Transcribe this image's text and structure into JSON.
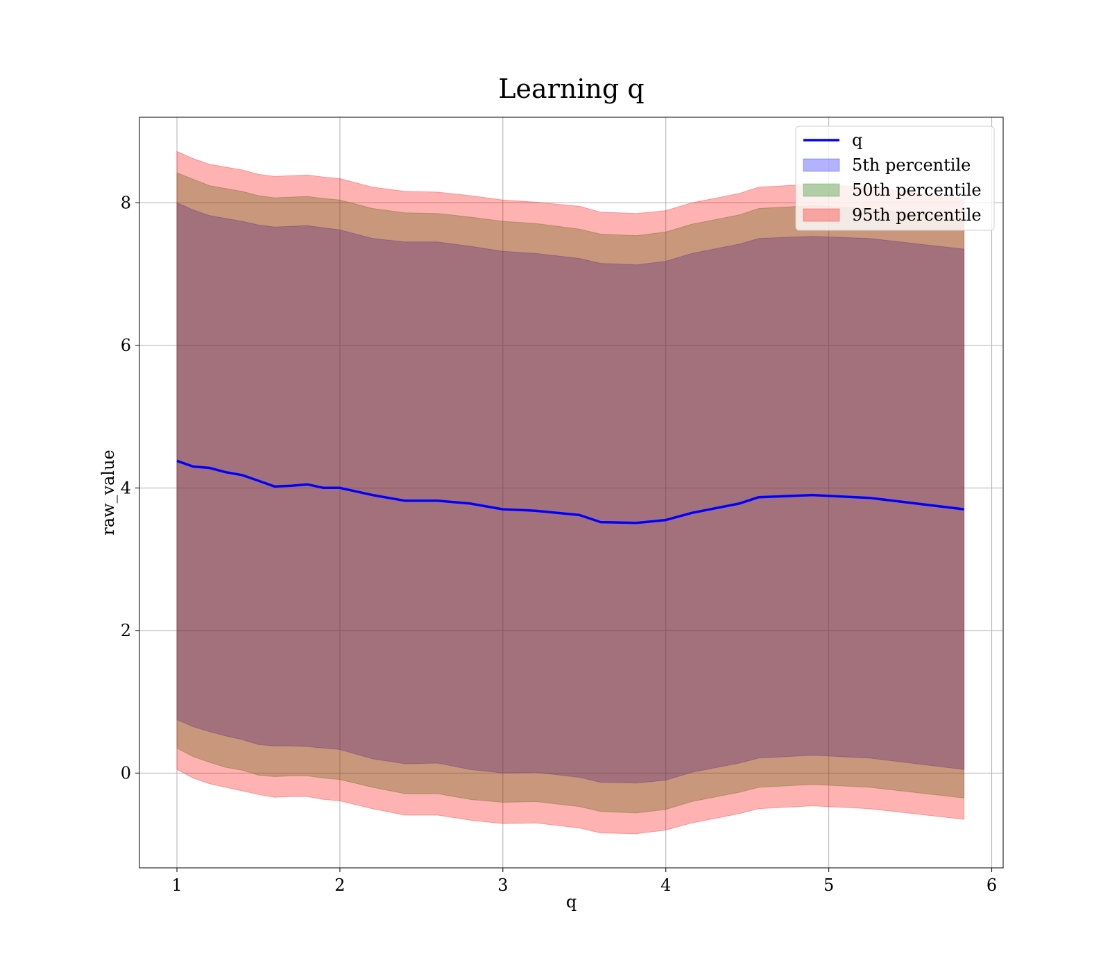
{
  "chart_data": {
    "type": "area",
    "title": "Learning q",
    "xlabel": "q",
    "ylabel": "raw_value",
    "xlim": [
      0.77,
      6.07
    ],
    "ylim": [
      -1.33,
      9.2
    ],
    "xticks": [
      1,
      2,
      3,
      4,
      5,
      6
    ],
    "yticks": [
      0,
      2,
      4,
      6,
      8
    ],
    "grid": true,
    "legend_position": "top-right",
    "x": [
      1.0,
      1.1,
      1.2,
      1.3,
      1.4,
      1.5,
      1.6,
      1.7,
      1.8,
      1.9,
      2.0,
      2.2,
      2.4,
      2.6,
      2.8,
      3.0,
      3.2,
      3.47,
      3.6,
      3.82,
      4.0,
      4.16,
      4.45,
      4.57,
      4.9,
      5.25,
      5.83
    ],
    "series": [
      {
        "name": "q",
        "color": "#0000ff",
        "values": [
          4.38,
          4.3,
          4.28,
          4.22,
          4.18,
          4.1,
          4.02,
          4.03,
          4.05,
          4.0,
          4.0,
          3.9,
          3.82,
          3.82,
          3.78,
          3.7,
          3.68,
          3.62,
          3.52,
          3.51,
          3.55,
          3.65,
          3.78,
          3.87,
          3.9,
          3.86,
          3.7
        ]
      },
      {
        "name": "5th percentile",
        "color": "#0000ff",
        "upper": [
          8.0,
          7.9,
          7.82,
          7.78,
          7.74,
          7.69,
          7.66,
          7.67,
          7.68,
          7.65,
          7.62,
          7.5,
          7.45,
          7.45,
          7.39,
          7.32,
          7.29,
          7.22,
          7.15,
          7.13,
          7.18,
          7.29,
          7.42,
          7.5,
          7.53,
          7.5,
          7.35
        ],
        "lower": [
          0.75,
          0.65,
          0.58,
          0.52,
          0.47,
          0.4,
          0.38,
          0.38,
          0.37,
          0.35,
          0.33,
          0.2,
          0.13,
          0.14,
          0.05,
          0.0,
          0.01,
          -0.06,
          -0.13,
          -0.14,
          -0.1,
          0.01,
          0.14,
          0.21,
          0.25,
          0.21,
          0.05
        ]
      },
      {
        "name": "50th percentile",
        "color": "#008000",
        "upper": [
          8.42,
          8.33,
          8.24,
          8.2,
          8.16,
          8.1,
          8.07,
          8.08,
          8.09,
          8.06,
          8.04,
          7.92,
          7.86,
          7.85,
          7.8,
          7.74,
          7.71,
          7.63,
          7.56,
          7.54,
          7.59,
          7.7,
          7.83,
          7.92,
          7.96,
          7.92,
          7.76
        ],
        "lower": [
          0.35,
          0.23,
          0.15,
          0.08,
          0.04,
          -0.03,
          -0.05,
          -0.04,
          -0.04,
          -0.07,
          -0.09,
          -0.2,
          -0.29,
          -0.29,
          -0.37,
          -0.41,
          -0.4,
          -0.47,
          -0.54,
          -0.56,
          -0.51,
          -0.4,
          -0.27,
          -0.2,
          -0.16,
          -0.2,
          -0.35
        ]
      },
      {
        "name": "95th percentile",
        "color": "#ff0000",
        "upper": [
          8.72,
          8.62,
          8.54,
          8.5,
          8.46,
          8.4,
          8.37,
          8.38,
          8.39,
          8.36,
          8.34,
          8.22,
          8.16,
          8.15,
          8.1,
          8.04,
          8.01,
          7.95,
          7.87,
          7.85,
          7.89,
          8.0,
          8.13,
          8.22,
          8.26,
          8.22,
          8.06
        ],
        "lower": [
          0.05,
          -0.07,
          -0.15,
          -0.2,
          -0.25,
          -0.3,
          -0.34,
          -0.33,
          -0.33,
          -0.37,
          -0.39,
          -0.5,
          -0.59,
          -0.59,
          -0.66,
          -0.71,
          -0.7,
          -0.77,
          -0.84,
          -0.85,
          -0.8,
          -0.7,
          -0.57,
          -0.5,
          -0.46,
          -0.5,
          -0.65
        ]
      }
    ]
  }
}
